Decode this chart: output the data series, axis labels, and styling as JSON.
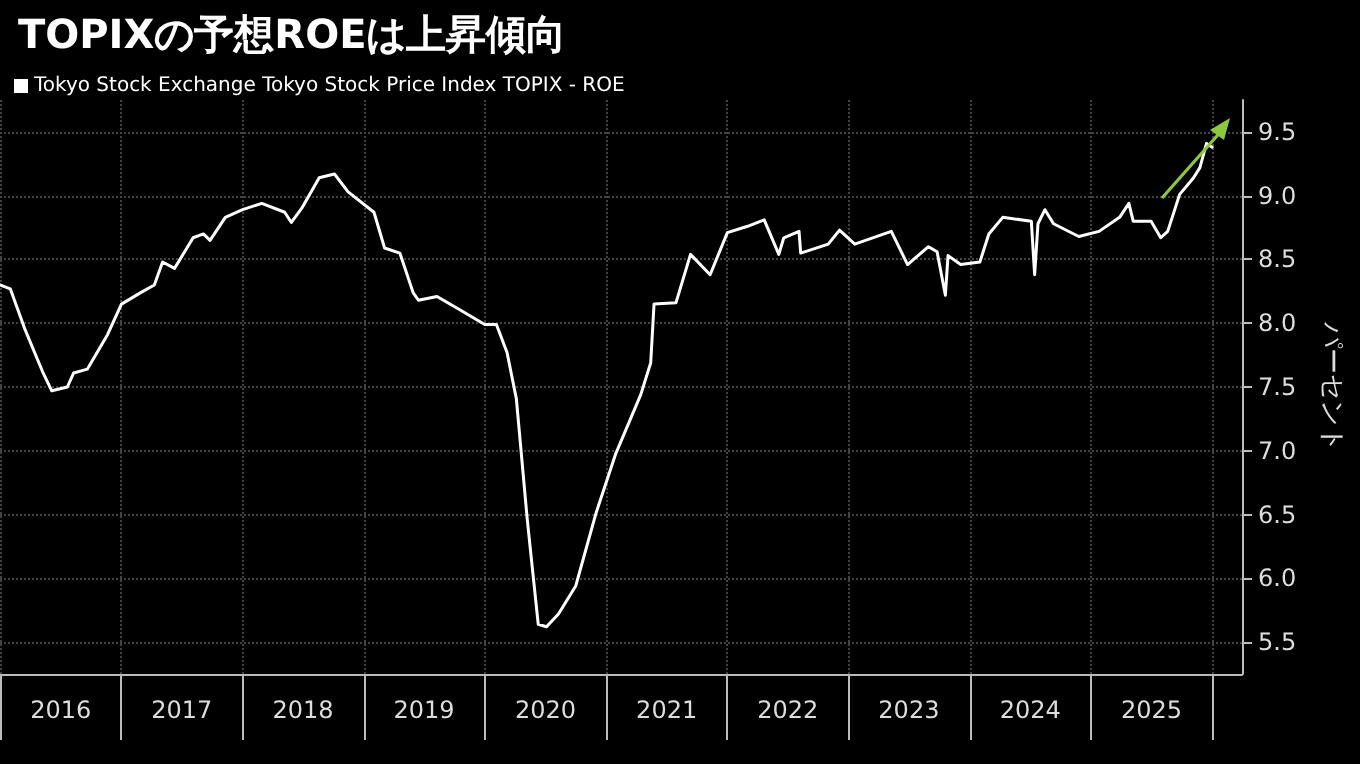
{
  "chart_data": {
    "type": "line",
    "title": "TOPIXの予想ROEは上昇傾向",
    "ylabel": "パーセント",
    "legend": "top left",
    "grid": true,
    "marker": "none",
    "line_style": "solid",
    "x": [
      "2016-01-01",
      "2016-02-01",
      "2016-03-15",
      "2016-05-10",
      "2016-06-05",
      "2016-07-22",
      "2016-08-10",
      "2016-09-20",
      "2016-11-20",
      "2017-01-01",
      "2017-02-28",
      "2017-04-10",
      "2017-05-05",
      "2017-06-10",
      "2017-08-05",
      "2017-09-05",
      "2017-09-25",
      "2017-11-10",
      "2018-01-01",
      "2018-02-28",
      "2018-05-08",
      "2018-05-28",
      "2018-06-28",
      "2018-08-20",
      "2018-10-05",
      "2018-11-15",
      "2019-02-01",
      "2019-03-05",
      "2019-04-20",
      "2019-05-30",
      "2019-06-15",
      "2019-08-10",
      "2019-10-15",
      "2020-01-01",
      "2020-02-05",
      "2020-03-08",
      "2020-04-05",
      "2020-05-08",
      "2020-06-10",
      "2020-07-05",
      "2020-08-10",
      "2020-10-01",
      "2020-12-01",
      "2021-01-30",
      "2021-04-15",
      "2021-05-15",
      "2021-05-25",
      "2021-07-30",
      "2021-09-12",
      "2021-11-10",
      "2022-01-01",
      "2022-03-03",
      "2022-04-22",
      "2022-06-05",
      "2022-06-20",
      "2022-08-05",
      "2022-08-10",
      "2022-11-01",
      "2022-12-05",
      "2023-01-20",
      "2023-05-10",
      "2023-06-28",
      "2023-08-30",
      "2023-09-25",
      "2023-10-20",
      "2023-10-28",
      "2023-12-05",
      "2024-02-01",
      "2024-02-28",
      "2024-04-10",
      "2024-07-05",
      "2024-07-15",
      "2024-07-25",
      "2024-08-15",
      "2024-09-10",
      "2024-11-25",
      "2025-01-25",
      "2025-03-28",
      "2025-04-25",
      "2025-05-08",
      "2025-07-01",
      "2025-07-30",
      "2025-08-20",
      "2025-09-25",
      "2025-11-06",
      "2025-11-25",
      "2025-12-15",
      "2026-01-01"
    ],
    "series": [
      {
        "name": "Tokyo Stock Exchange Tokyo Stock Price Index TOPIX - ROE",
        "color": "#ffffff",
        "values": [
          8.3,
          8.27,
          7.96,
          7.61,
          7.47,
          7.5,
          7.61,
          7.64,
          7.91,
          8.15,
          8.24,
          8.3,
          8.48,
          8.43,
          8.67,
          8.7,
          8.65,
          8.83,
          8.89,
          8.94,
          8.87,
          8.79,
          8.9,
          9.14,
          9.17,
          9.03,
          8.87,
          8.59,
          8.55,
          8.24,
          8.18,
          8.21,
          8.11,
          7.99,
          7.99,
          7.77,
          7.41,
          6.46,
          5.64,
          5.62,
          5.72,
          5.94,
          6.51,
          6.98,
          7.44,
          7.69,
          8.15,
          8.16,
          8.54,
          8.38,
          8.71,
          8.76,
          8.81,
          8.54,
          8.67,
          8.72,
          8.55,
          8.62,
          8.73,
          8.62,
          8.72,
          8.46,
          8.6,
          8.56,
          8.22,
          8.53,
          8.46,
          8.48,
          8.7,
          8.83,
          8.8,
          8.38,
          8.78,
          8.89,
          8.78,
          8.68,
          8.72,
          8.83,
          8.94,
          8.8,
          8.8,
          8.67,
          8.72,
          9.01,
          9.14,
          9.22,
          9.41,
          9.38
        ]
      }
    ],
    "xlim": [
      "2016-01-01",
      "2026-04-01"
    ],
    "xticks": [
      {
        "value": "2016-01-01",
        "label": null
      },
      {
        "value": "2016-07-02",
        "label": "2016"
      },
      {
        "value": "2017-01-01",
        "label": null
      },
      {
        "value": "2017-07-02",
        "label": "2017"
      },
      {
        "value": "2018-01-01",
        "label": null
      },
      {
        "value": "2018-07-02",
        "label": "2018"
      },
      {
        "value": "2019-01-01",
        "label": null
      },
      {
        "value": "2019-07-02",
        "label": "2019"
      },
      {
        "value": "2020-01-01",
        "label": null
      },
      {
        "value": "2020-07-02",
        "label": "2020"
      },
      {
        "value": "2021-01-01",
        "label": null
      },
      {
        "value": "2021-07-02",
        "label": "2021"
      },
      {
        "value": "2022-01-01",
        "label": null
      },
      {
        "value": "2022-07-02",
        "label": "2022"
      },
      {
        "value": "2023-01-01",
        "label": null
      },
      {
        "value": "2023-07-02",
        "label": "2023"
      },
      {
        "value": "2024-01-01",
        "label": null
      },
      {
        "value": "2024-07-02",
        "label": "2024"
      },
      {
        "value": "2025-01-01",
        "label": null
      },
      {
        "value": "2025-07-02",
        "label": "2025"
      },
      {
        "value": "2026-01-01",
        "label": null
      }
    ],
    "ylim": [
      5.25,
      9.75
    ],
    "yticks": [
      5.5,
      {
        "value": 6,
        "label": "6.0"
      },
      6.5,
      {
        "value": 7,
        "label": "7.0"
      },
      7.5,
      {
        "value": 8,
        "label": "8.0"
      },
      8.5,
      {
        "value": 9,
        "label": "9.0"
      },
      9.5
    ]
  }
}
